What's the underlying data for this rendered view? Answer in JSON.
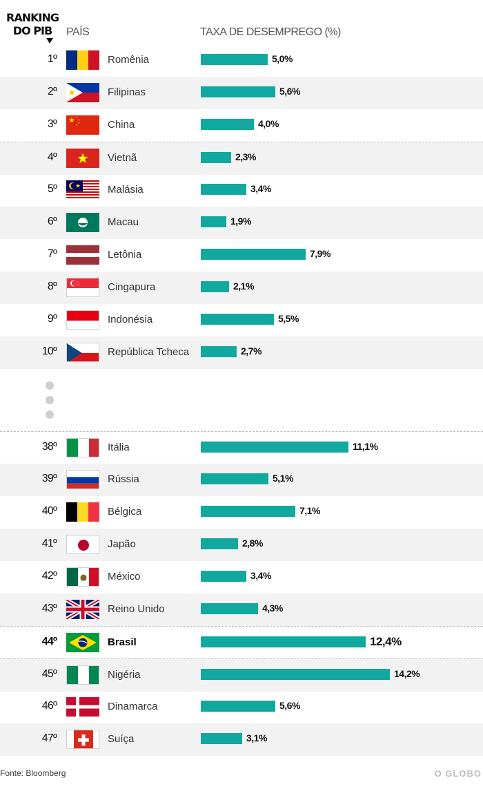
{
  "headers": {
    "ranking": "RANKING DO PIB",
    "pais": "PAÍS",
    "taxa": "TAXA DE DESEMPREGO (%)"
  },
  "footer": {
    "source": "Fonte: Bloomberg",
    "brand": "O GLOBO"
  },
  "colors": {
    "bar": "#11a8a0",
    "row_shade": "#f2f2f2"
  },
  "chart_data": {
    "type": "bar",
    "orientation": "horizontal",
    "ylabel": "TAXA DE DESEMPREGO (%)",
    "categories": [
      "Romênia",
      "Filipinas",
      "China",
      "Vietnã",
      "Malásia",
      "Macau",
      "Letônia",
      "Cingapura",
      "Indonésia",
      "República Tcheca",
      "Itália",
      "Rússia",
      "Bélgica",
      "Japão",
      "México",
      "Reino Unido",
      "Brasil",
      "Nigéria",
      "Dinamarca",
      "Suíça"
    ],
    "values": [
      5.0,
      5.6,
      4.0,
      2.3,
      3.4,
      1.9,
      7.9,
      2.1,
      5.5,
      2.7,
      11.1,
      5.1,
      7.1,
      2.8,
      3.4,
      4.3,
      12.4,
      14.2,
      5.6,
      3.1
    ],
    "rows": [
      {
        "rank": "1º",
        "country": "Romênia",
        "value": 5.0,
        "label": "5,0%",
        "flag": "romania-flag"
      },
      {
        "rank": "2º",
        "country": "Filipinas",
        "value": 5.6,
        "label": "5,6%",
        "flag": "philippines-flag"
      },
      {
        "rank": "3º",
        "country": "China",
        "value": 4.0,
        "label": "4,0%",
        "flag": "china-flag"
      },
      {
        "rank": "4º",
        "country": "Vietnã",
        "value": 2.3,
        "label": "2,3%",
        "flag": "vietnam-flag"
      },
      {
        "rank": "5º",
        "country": "Malásia",
        "value": 3.4,
        "label": "3,4%",
        "flag": "malaysia-flag"
      },
      {
        "rank": "6º",
        "country": "Macau",
        "value": 1.9,
        "label": "1,9%",
        "flag": "macau-flag"
      },
      {
        "rank": "7º",
        "country": "Letônia",
        "value": 7.9,
        "label": "7,9%",
        "flag": "latvia-flag"
      },
      {
        "rank": "8º",
        "country": "Cingapura",
        "value": 2.1,
        "label": "2,1%",
        "flag": "singapore-flag"
      },
      {
        "rank": "9º",
        "country": "Indonésia",
        "value": 5.5,
        "label": "5,5%",
        "flag": "indonesia-flag"
      },
      {
        "rank": "10º",
        "country": "República Tcheca",
        "value": 2.7,
        "label": "2,7%",
        "flag": "czech-flag"
      },
      {
        "rank": "38º",
        "country": "Itália",
        "value": 11.1,
        "label": "11,1%",
        "flag": "italy-flag"
      },
      {
        "rank": "39º",
        "country": "Rússia",
        "value": 5.1,
        "label": "5,1%",
        "flag": "russia-flag"
      },
      {
        "rank": "40º",
        "country": "Bélgica",
        "value": 7.1,
        "label": "7,1%",
        "flag": "belgium-flag"
      },
      {
        "rank": "41º",
        "country": "Japão",
        "value": 2.8,
        "label": "2,8%",
        "flag": "japan-flag"
      },
      {
        "rank": "42º",
        "country": "México",
        "value": 3.4,
        "label": "3,4%",
        "flag": "mexico-flag"
      },
      {
        "rank": "43º",
        "country": "Reino Unido",
        "value": 4.3,
        "label": "4,3%",
        "flag": "uk-flag"
      },
      {
        "rank": "44º",
        "country": "Brasil",
        "value": 12.4,
        "label": "12,4%",
        "flag": "brazil-flag",
        "highlight": true
      },
      {
        "rank": "45º",
        "country": "Nigéria",
        "value": 14.2,
        "label": "14,2%",
        "flag": "nigeria-flag"
      },
      {
        "rank": "46º",
        "country": "Dinamarca",
        "value": 5.6,
        "label": "5,6%",
        "flag": "denmark-flag"
      },
      {
        "rank": "47º",
        "country": "Suíça",
        "value": 3.1,
        "label": "3,1%",
        "flag": "switzerland-flag"
      }
    ]
  }
}
